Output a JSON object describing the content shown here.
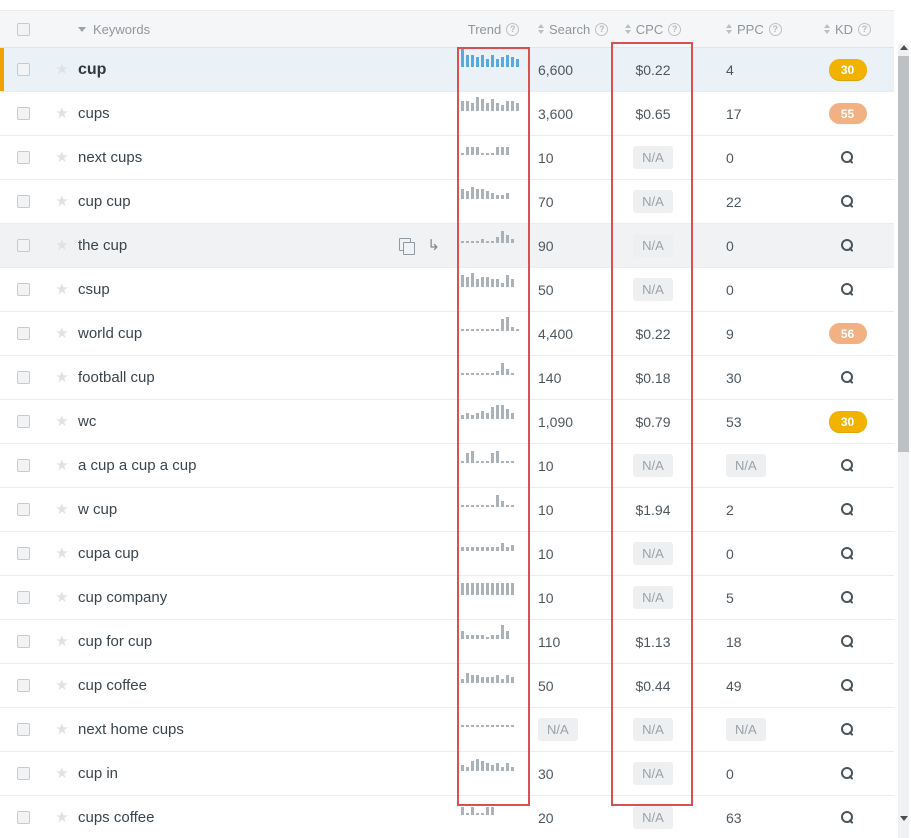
{
  "header": {
    "keywords_label": "Keywords",
    "trend_label": "Trend",
    "search_label": "Search",
    "cpc_label": "CPC",
    "ppc_label": "PPC",
    "kd_label": "KD"
  },
  "icons": {
    "help": "?",
    "star": "★",
    "goto": "↳"
  },
  "na_label": "N/A",
  "colors": {
    "trend_active_blue": "#58a9df",
    "trend_gray": "#aab1b7",
    "kd_gold": "#f2b200",
    "kd_peach": "#f1b183",
    "active_row_bg": "#eaf2f8",
    "active_row_border": "#f0a300",
    "annotation_red": "#d95050",
    "na_badge_bg": "#edeff1",
    "header_bg": "#f5f6f7"
  },
  "rows": [
    {
      "keyword": "cup",
      "state": "active",
      "show_actions": false,
      "trend": [
        10,
        6,
        6,
        5,
        6,
        4,
        6,
        4,
        5,
        6,
        5,
        4
      ],
      "trend_color": "blue",
      "search": "6,600",
      "cpc": "$0.22",
      "ppc": "4",
      "kd": "30",
      "kd_color": "gold"
    },
    {
      "keyword": "cups",
      "state": "",
      "show_actions": false,
      "trend": [
        5,
        5,
        4,
        7,
        6,
        4,
        6,
        4,
        3,
        5,
        5,
        4
      ],
      "trend_color": "gray",
      "search": "3,600",
      "cpc": "$0.65",
      "ppc": "17",
      "kd": "55",
      "kd_color": "peach"
    },
    {
      "keyword": "next cups",
      "state": "",
      "show_actions": false,
      "trend": [
        1,
        4,
        4,
        4,
        1,
        1,
        1,
        4,
        4,
        4
      ],
      "trend_color": "gray",
      "search": "10",
      "cpc": "N/A",
      "ppc": "0",
      "kd": null,
      "kd_color": null
    },
    {
      "keyword": "cup cup",
      "state": "",
      "show_actions": false,
      "trend": [
        5,
        4,
        6,
        5,
        5,
        4,
        3,
        2,
        2,
        3
      ],
      "trend_color": "gray",
      "search": "70",
      "cpc": "N/A",
      "ppc": "22",
      "kd": null,
      "kd_color": null
    },
    {
      "keyword": "the cup",
      "state": "hovered",
      "show_actions": true,
      "trend": [
        1,
        1,
        1,
        1,
        2,
        1,
        1,
        3,
        6,
        4,
        2
      ],
      "trend_color": "gray",
      "search": "90",
      "cpc": "N/A",
      "ppc": "0",
      "kd": null,
      "kd_color": null
    },
    {
      "keyword": "csup",
      "state": "",
      "show_actions": false,
      "trend": [
        6,
        5,
        7,
        4,
        5,
        5,
        4,
        4,
        2,
        6,
        4
      ],
      "trend_color": "gray",
      "search": "50",
      "cpc": "N/A",
      "ppc": "0",
      "kd": null,
      "kd_color": null
    },
    {
      "keyword": "world cup",
      "state": "",
      "show_actions": false,
      "trend": [
        1,
        1,
        1,
        1,
        1,
        1,
        1,
        1,
        6,
        7,
        2,
        1
      ],
      "trend_color": "gray",
      "search": "4,400",
      "cpc": "$0.22",
      "ppc": "9",
      "kd": "56",
      "kd_color": "peach"
    },
    {
      "keyword": "football cup",
      "state": "",
      "show_actions": false,
      "trend": [
        1,
        1,
        1,
        1,
        1,
        1,
        1,
        2,
        6,
        3,
        1
      ],
      "trend_color": "gray",
      "search": "140",
      "cpc": "$0.18",
      "ppc": "30",
      "kd": null,
      "kd_color": null
    },
    {
      "keyword": "wc",
      "state": "",
      "show_actions": false,
      "trend": [
        2,
        3,
        2,
        3,
        4,
        3,
        6,
        7,
        7,
        5,
        3
      ],
      "trend_color": "gray",
      "search": "1,090",
      "cpc": "$0.79",
      "ppc": "53",
      "kd": "30",
      "kd_color": "gold"
    },
    {
      "keyword": "a cup a cup a cup",
      "state": "",
      "show_actions": false,
      "trend": [
        1,
        5,
        6,
        1,
        1,
        1,
        5,
        6,
        1,
        1,
        1
      ],
      "trend_color": "gray",
      "search": "10",
      "cpc": "N/A",
      "ppc": "N/A",
      "kd": null,
      "kd_color": null
    },
    {
      "keyword": "w cup",
      "state": "",
      "show_actions": false,
      "trend": [
        1,
        1,
        1,
        1,
        1,
        1,
        1,
        6,
        3,
        1,
        1
      ],
      "trend_color": "gray",
      "search": "10",
      "cpc": "$1.94",
      "ppc": "2",
      "kd": null,
      "kd_color": null
    },
    {
      "keyword": "cupa cup",
      "state": "",
      "show_actions": false,
      "trend": [
        2,
        2,
        2,
        2,
        2,
        2,
        2,
        2,
        4,
        2,
        3
      ],
      "trend_color": "gray",
      "search": "10",
      "cpc": "N/A",
      "ppc": "0",
      "kd": null,
      "kd_color": null
    },
    {
      "keyword": "cup company",
      "state": "",
      "show_actions": false,
      "trend": [
        6,
        6,
        6,
        6,
        6,
        6,
        6,
        6,
        6,
        6,
        6
      ],
      "trend_color": "gray",
      "search": "10",
      "cpc": "N/A",
      "ppc": "5",
      "kd": null,
      "kd_color": null
    },
    {
      "keyword": "cup for cup",
      "state": "",
      "show_actions": false,
      "trend": [
        4,
        2,
        2,
        2,
        2,
        1,
        2,
        2,
        7,
        4
      ],
      "trend_color": "gray",
      "search": "110",
      "cpc": "$1.13",
      "ppc": "18",
      "kd": null,
      "kd_color": null
    },
    {
      "keyword": "cup coffee",
      "state": "",
      "show_actions": false,
      "trend": [
        2,
        5,
        4,
        4,
        3,
        3,
        3,
        4,
        2,
        4,
        3
      ],
      "trend_color": "gray",
      "search": "50",
      "cpc": "$0.44",
      "ppc": "49",
      "kd": null,
      "kd_color": null
    },
    {
      "keyword": "next home cups",
      "state": "",
      "show_actions": false,
      "trend": [
        1,
        1,
        1,
        1,
        1,
        1,
        1,
        1,
        1,
        1,
        1
      ],
      "trend_color": "gray",
      "search": "N/A",
      "cpc": "N/A",
      "ppc": "N/A",
      "kd": null,
      "kd_color": null
    },
    {
      "keyword": "cup in",
      "state": "",
      "show_actions": false,
      "trend": [
        3,
        2,
        5,
        6,
        5,
        4,
        3,
        4,
        2,
        4,
        2
      ],
      "trend_color": "gray",
      "search": "30",
      "cpc": "N/A",
      "ppc": "0",
      "kd": null,
      "kd_color": null
    },
    {
      "keyword": "cups coffee",
      "state": "",
      "show_actions": false,
      "trend": [
        4,
        1,
        4,
        1,
        1,
        4,
        4
      ],
      "trend_color": "gray",
      "search": "20",
      "cpc": "N/A",
      "ppc": "63",
      "kd": null,
      "kd_color": null
    }
  ]
}
